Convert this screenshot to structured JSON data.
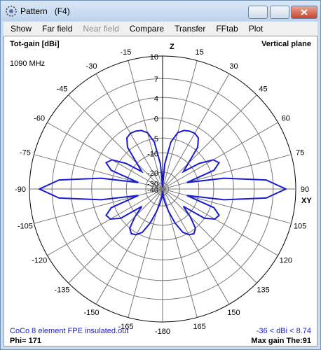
{
  "window": {
    "title": "Pattern   (F4)"
  },
  "menu": [
    {
      "label": "Show",
      "enabled": true
    },
    {
      "label": "Far field",
      "enabled": true
    },
    {
      "label": "Near field",
      "enabled": false
    },
    {
      "label": "Compare",
      "enabled": true
    },
    {
      "label": "Transfer",
      "enabled": true
    },
    {
      "label": "FFtab",
      "enabled": true
    },
    {
      "label": "Plot",
      "enabled": true
    }
  ],
  "chart_data": {
    "type": "polar",
    "title": "Vertical plane",
    "ylabel": "Tot-gain [dBi]",
    "frequency": "1090 MHz",
    "axis_labels": {
      "top": "Z",
      "right": "XY"
    },
    "rscale": "arrl",
    "rlim": [
      -40,
      10
    ],
    "rticks": [
      10,
      7,
      4,
      0,
      -5,
      -10,
      -20,
      -30,
      -40
    ],
    "thetaticks": [
      -180,
      -165,
      -150,
      -135,
      -120,
      -105,
      -90,
      -75,
      -60,
      -45,
      -30,
      -15,
      15,
      30,
      45,
      60,
      75,
      90,
      105,
      120,
      135,
      150,
      165
    ],
    "theta": [
      -180,
      -175,
      -170,
      -165,
      -160,
      -155,
      -150,
      -145,
      -140,
      -135,
      -130,
      -125,
      -120,
      -115,
      -110,
      -105,
      -100,
      -95,
      -90,
      -85,
      -80,
      -75,
      -70,
      -65,
      -60,
      -55,
      -50,
      -45,
      -40,
      -35,
      -30,
      -25,
      -20,
      -15,
      -10,
      -5,
      0,
      5,
      10,
      15,
      20,
      25,
      30,
      35,
      40,
      45,
      50,
      55,
      60,
      65,
      70,
      75,
      80,
      85,
      90,
      95,
      100,
      105,
      110,
      115,
      120,
      125,
      130,
      135,
      140,
      145,
      150,
      155,
      160,
      165,
      170,
      175,
      180
    ],
    "values": [
      -36,
      -28,
      -22,
      -16,
      -10,
      -6,
      -4.5,
      -4,
      -5,
      -9,
      -14,
      -5,
      -2.5,
      -2,
      -4,
      -15,
      -2,
      6,
      8.74,
      6,
      -2,
      -15,
      -4,
      -2,
      -3,
      -7,
      -14,
      -10,
      -4,
      -2,
      -1.5,
      -1.6,
      -2,
      -3,
      -6,
      -15,
      -36,
      -15,
      -6,
      -3,
      -2,
      -1.6,
      -1.5,
      -2,
      -4,
      -10,
      -14,
      -7,
      -3,
      -2,
      -4,
      -15,
      -2,
      6,
      8.74,
      6,
      -2,
      -15,
      -4,
      -2,
      -2.5,
      -5,
      -14,
      -9,
      -5,
      -4,
      -4.5,
      -6,
      -10,
      -16,
      -22,
      -28,
      -36
    ],
    "color": "#1a1ad0",
    "footer": {
      "file": "CoCo 8 element FPE insulated.out",
      "range": "-36 < dBi < 8.74",
      "phi": "Phi= 171",
      "max_gain": "Max gain The:91"
    }
  }
}
